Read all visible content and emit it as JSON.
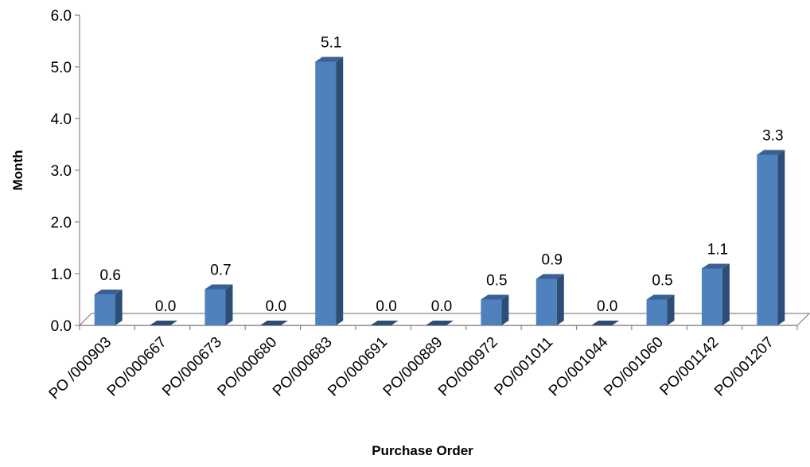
{
  "chart_data": {
    "type": "bar",
    "title": "",
    "xlabel": "Purchase Order",
    "ylabel": "Month",
    "categories": [
      "PO /000903",
      "PO/000667",
      "PO/000673",
      "PO/000680",
      "PO/000683",
      "PO/000691",
      "PO/000889",
      "PO/000972",
      "PO/001011",
      "PO/001044",
      "PO/001060",
      "PO/001142",
      "PO/001207"
    ],
    "values": [
      0.6,
      0.0,
      0.7,
      0.0,
      5.1,
      0.0,
      0.0,
      0.5,
      0.9,
      0.0,
      0.5,
      1.1,
      3.3
    ],
    "data_labels": [
      "0.6",
      "0.0",
      "0.7",
      "0.0",
      "5.1",
      "0.0",
      "0.0",
      "0.5",
      "0.9",
      "0.0",
      "0.5",
      "1.1",
      "3.3"
    ],
    "yticks": [
      "0.0",
      "1.0",
      "2.0",
      "3.0",
      "4.0",
      "5.0",
      "6.0"
    ],
    "ylim": [
      0,
      6
    ],
    "grid": false,
    "legend": "none",
    "style": "3d-column",
    "colors": {
      "bar_front": "#4f81bd",
      "bar_side": "#2c4d75",
      "bar_top": "#3a6191",
      "axis": "#868686"
    }
  }
}
